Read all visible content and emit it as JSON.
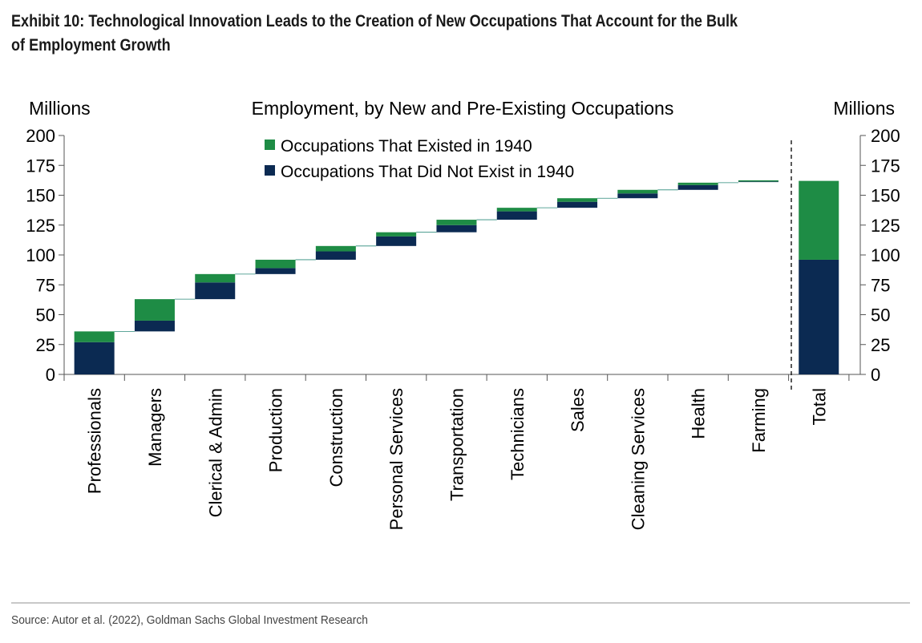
{
  "exhibit": {
    "title_line1": "Exhibit 10: Technological Innovation Leads to the Creation of New Occupations That Account for the Bulk",
    "title_line2": "of Employment Growth"
  },
  "source": "Source: Autor et al. (2022), Goldman Sachs Global Investment Research",
  "colors": {
    "existed": "#1e8c45",
    "not_existed": "#0b2a52",
    "connector": "#2a8a7a"
  },
  "chart_data": {
    "type": "bar",
    "subtype": "waterfall-stacked",
    "title": "Employment, by New and Pre-Existing Occupations",
    "ylabel_left": "Millions",
    "ylabel_right": "Millions",
    "ylim": [
      0,
      200
    ],
    "yticks": [
      0,
      25,
      50,
      75,
      100,
      125,
      150,
      175,
      200
    ],
    "legend": [
      "Occupations That Existed in 1940",
      "Occupations That Did Not Exist in 1940"
    ],
    "legend_position": "top-center",
    "categories": [
      "Professionals",
      "Managers",
      "Clerical & Admin",
      "Production",
      "Construction",
      "Personal Services",
      "Transportation",
      "Technicians",
      "Sales",
      "Cleaning Services",
      "Health",
      "Farming"
    ],
    "base": [
      0,
      36,
      63,
      84,
      96,
      107.5,
      119,
      129.5,
      139.5,
      147.5,
      154.5,
      161
    ],
    "series": [
      {
        "name": "Occupations That Did Not Exist in 1940",
        "values": [
          27,
          9,
          14,
          5,
          7,
          8,
          6,
          7,
          5,
          4,
          4,
          0.5
        ]
      },
      {
        "name": "Occupations That Existed in 1940",
        "values": [
          9,
          18,
          7,
          7,
          4.5,
          3.5,
          4.5,
          3,
          3,
          3,
          2,
          1
        ]
      }
    ],
    "total": {
      "label": "Total",
      "not_existed": 96,
      "existed": 66
    }
  }
}
